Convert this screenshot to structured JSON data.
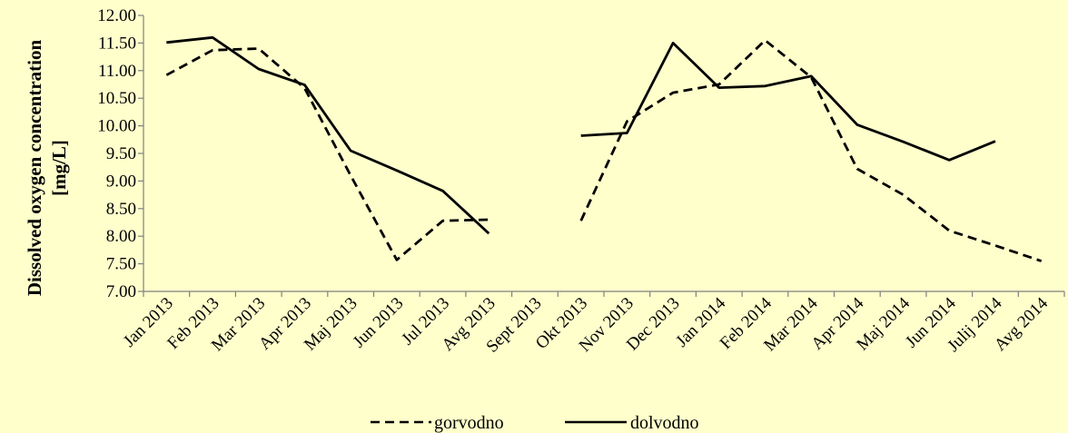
{
  "chart_data": {
    "type": "line",
    "title": "",
    "xlabel": "",
    "ylabel": [
      "Dissolved oxygen concentration",
      "[mg/L]"
    ],
    "ylim": [
      7.0,
      12.0
    ],
    "y_ticks": [
      "7.00",
      "7.50",
      "8.00",
      "8.50",
      "9.00",
      "9.50",
      "10.00",
      "10.50",
      "11.00",
      "11.50",
      "12.00"
    ],
    "categories": [
      "Jan 2013",
      "Feb 2013",
      "Mar 2013",
      "Apr 2013",
      "Maj 2013",
      "Jun 2013",
      "Jul 2013",
      "Avg 2013",
      "Sept 2013",
      "Okt 2013",
      "Nov 2013",
      "Dec 2013",
      "Jan 2014",
      "Feb 2014",
      "Mar 2014",
      "Apr 2014",
      "Maj 2014",
      "Jun 2014",
      "Julij 2014",
      "Avg 2014"
    ],
    "grid": false,
    "legend_position": "bottom",
    "series": [
      {
        "name": "gorvodno",
        "style": "dashed",
        "color": "#000000",
        "values": [
          10.92,
          11.37,
          11.4,
          10.68,
          9.1,
          7.57,
          8.28,
          8.3,
          null,
          8.28,
          10.08,
          10.6,
          10.75,
          11.55,
          10.88,
          9.22,
          8.75,
          8.1,
          7.83,
          7.55
        ]
      },
      {
        "name": "dolvodno",
        "style": "solid",
        "color": "#000000",
        "values": [
          11.51,
          11.6,
          11.03,
          10.74,
          9.55,
          9.19,
          8.82,
          8.05,
          null,
          9.82,
          9.87,
          11.5,
          10.69,
          10.72,
          10.9,
          10.02,
          9.71,
          9.38,
          9.72,
          null
        ]
      }
    ]
  }
}
